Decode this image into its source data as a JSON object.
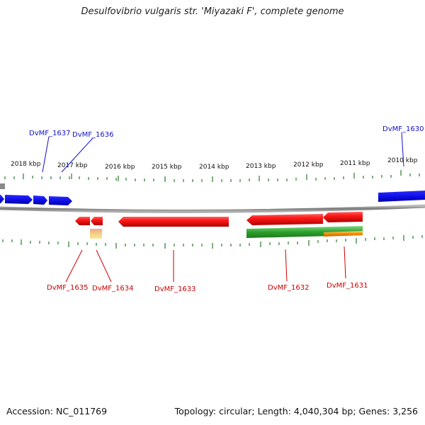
{
  "title": "Desulfovibrio vulgaris str. 'Miyazaki F', complete genome",
  "footer": {
    "accession": "Accession: NC_011769",
    "summary": "Topology: circular; Length: 4,040,304 bp; Genes: 3,256"
  },
  "colors": {
    "forward_gene": "#1010e0",
    "reverse_gene": "#e01010",
    "rna_gene": "#2ca02c",
    "other_feature": "#f08c00",
    "backbone": "#8a8a8a",
    "tick": "#2a7a2a",
    "label_forward": "#1010cc",
    "label_reverse": "#cc0000"
  },
  "scale": {
    "unit": "kbp",
    "ticks": [
      {
        "kbp": 2018,
        "label": "2018 kbp"
      },
      {
        "kbp": 2017,
        "label": "2017 kbp"
      },
      {
        "kbp": 2016,
        "label": "2016 kbp"
      },
      {
        "kbp": 2015,
        "label": "2015 kbp"
      },
      {
        "kbp": 2014,
        "label": "2014 kbp"
      },
      {
        "kbp": 2013,
        "label": "2013 kbp"
      },
      {
        "kbp": 2012,
        "label": "2012 kbp"
      },
      {
        "kbp": 2011,
        "label": "2011 kbp"
      },
      {
        "kbp": 2010,
        "label": "2010 kbp"
      }
    ]
  },
  "gene_labels": [
    {
      "id": "dvmf-1637",
      "text": "DvMF_1637",
      "strand": "forward"
    },
    {
      "id": "dvmf-1636",
      "text": "DvMF_1636",
      "strand": "forward"
    },
    {
      "id": "dvmf-1630",
      "text": "DvMF_1630",
      "strand": "forward"
    },
    {
      "id": "dvmf-1635",
      "text": "DvMF_1635",
      "strand": "reverse"
    },
    {
      "id": "dvmf-1634",
      "text": "DvMF_1634",
      "strand": "reverse"
    },
    {
      "id": "dvmf-1633",
      "text": "DvMF_1633",
      "strand": "reverse"
    },
    {
      "id": "dvmf-1632",
      "text": "DvMF_1632",
      "strand": "reverse"
    },
    {
      "id": "dvmf-1631",
      "text": "DvMF_1631",
      "strand": "reverse"
    }
  ]
}
